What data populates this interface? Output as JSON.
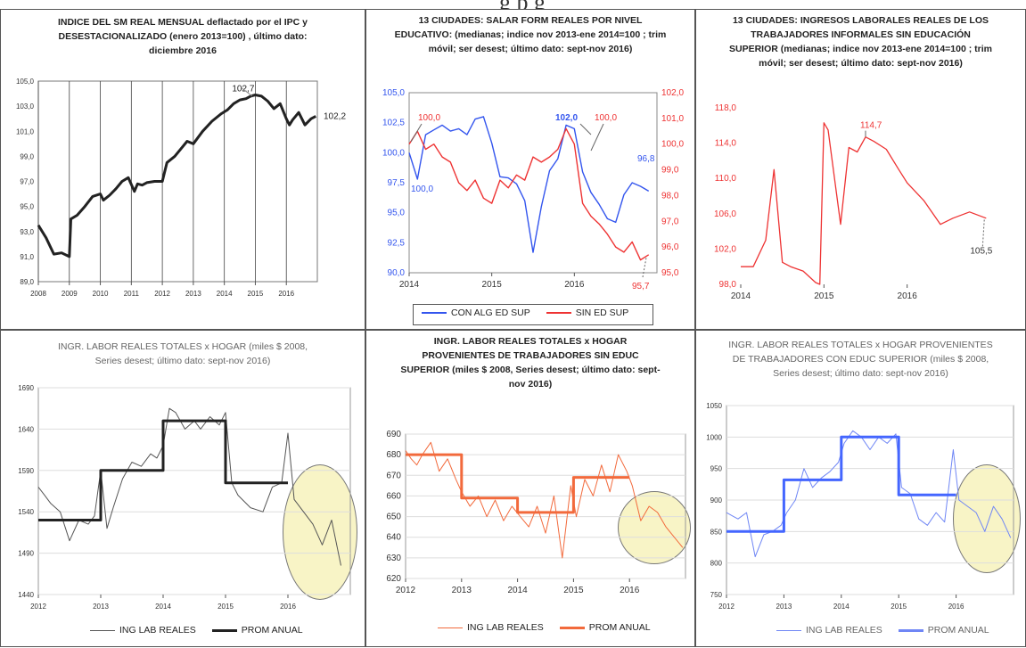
{
  "header_fragment": "g         p g",
  "panels": {
    "p1": {
      "title": "INDICE DEL SM REAL MENSUAL deflactado por el IPC y DESESTACIONALIZADO (enero 2013=100) , último dato: diciembre 2016"
    },
    "p2": {
      "title": "13 CIUDADES:  SALAR FORM REALES POR NIVEL EDUCATIVO:  (medianas; indice nov 2013-ene 2014=100 ; trim móvil; ser desest; último dato: sept-nov 2016)",
      "legend": [
        "CON ALG  ED SUP",
        "SIN ED SUP"
      ]
    },
    "p3": {
      "title": "13 CIUDADES:  INGRESOS  LABORALES REALES DE LOS TRABAJADORES  INFORMALES SIN EDUCACIÓN SUPERIOR  (medianas; indice nov 2013-ene 2014=100 ; trim móvil; ser desest; último dato:  sept-nov 2016)"
    },
    "p4": {
      "title": "INGR. LABOR REALES TOTALES x  HOGAR (miles $ 2008, Series desest; último dato: sept-nov 2016)",
      "legend": [
        "ING LAB REALES",
        "PROM ANUAL"
      ]
    },
    "p5": {
      "title": "INGR. LABOR REALES TOTALES x  HOGAR PROVENIENTES  DE TRABAJADORES  SIN EDUC SUPERIOR  (miles $ 2008, Series desest; último dato: sept-nov 2016)",
      "legend": [
        "ING LAB REALES",
        "PROM ANUAL"
      ]
    },
    "p6": {
      "title": "INGR. LABOR REALES TOTALES x  HOGAR PROVENIENTES DE TRABAJADORES CON EDUC SUPERIOR (miles $ 2008, Series desest; último dato: sept-nov 2016)",
      "legend": [
        "ING LAB REALES",
        "PROM ANUAL"
      ]
    }
  },
  "colors": {
    "black": "#222222",
    "blue": "#3355ee",
    "red": "#ee3333",
    "orange": "#f26a3c",
    "light_blue": "#6f86f5",
    "gray": "#555555",
    "ellipse": "#f8f4c6"
  },
  "chart_data": [
    {
      "type": "line",
      "ylim": [
        89.0,
        105.0
      ],
      "yticks": [
        "89,0",
        "91,0",
        "93,0",
        "95,0",
        "97,0",
        "99,0",
        "101,0",
        "103,0",
        "105,0"
      ],
      "xlim": [
        2008,
        2017
      ],
      "xticks": [
        "2008",
        "2009",
        "2010",
        "2011",
        "2012",
        "2013",
        "2014",
        "2015",
        "2016"
      ],
      "grid": "vertical",
      "series": [
        {
          "x": [
            2008.0,
            2008.25,
            2008.5,
            2008.75,
            2009.0,
            2009.05,
            2009.25,
            2009.5,
            2009.75,
            2010.0,
            2010.1,
            2010.3,
            2010.5,
            2010.7,
            2010.9,
            2011.1,
            2011.2,
            2011.35,
            2011.5,
            2011.75,
            2012.0,
            2012.15,
            2012.4,
            2012.6,
            2012.8,
            2013.0,
            2013.3,
            2013.6,
            2013.9,
            2014.1,
            2014.3,
            2014.5,
            2014.7,
            2014.85,
            2015.0,
            2015.2,
            2015.4,
            2015.6,
            2015.8,
            2016.0,
            2016.1,
            2016.2,
            2016.4,
            2016.6,
            2016.8,
            2016.95
          ],
          "values": [
            93.5,
            92.5,
            91.2,
            91.3,
            91.0,
            94.0,
            94.3,
            95.0,
            95.8,
            96.0,
            95.5,
            95.9,
            96.4,
            97.0,
            97.3,
            96.2,
            96.8,
            96.7,
            96.9,
            97.0,
            97.0,
            98.5,
            99.0,
            99.6,
            100.2,
            100.0,
            101.0,
            101.8,
            102.4,
            102.7,
            103.2,
            103.5,
            103.6,
            103.8,
            103.9,
            103.8,
            103.4,
            102.8,
            103.2,
            102.0,
            101.5,
            101.9,
            102.5,
            101.5,
            102.0,
            102.2
          ]
        }
      ],
      "annotations": [
        "102,7",
        "102,2"
      ]
    },
    {
      "type": "line",
      "ylim_left": [
        90.0,
        105.0
      ],
      "yticks_left": [
        "90,0",
        "92,5",
        "95,0",
        "97,5",
        "100,0",
        "102,5",
        "105,0"
      ],
      "ylim_right": [
        95.0,
        102.0
      ],
      "yticks_right": [
        "95,0",
        "96,0",
        "97,0",
        "98,0",
        "99,0",
        "100,0",
        "101,0",
        "102,0"
      ],
      "xlim": [
        2014,
        2017
      ],
      "xticks": [
        "2014",
        "2015",
        "2016"
      ],
      "series": [
        {
          "name": "CON ALG  ED SUP",
          "axis": "left",
          "x": [
            2014.0,
            2014.1,
            2014.2,
            2014.3,
            2014.4,
            2014.5,
            2014.6,
            2014.7,
            2014.8,
            2014.9,
            2015.0,
            2015.1,
            2015.2,
            2015.3,
            2015.4,
            2015.5,
            2015.6,
            2015.7,
            2015.8,
            2015.9,
            2016.0,
            2016.1,
            2016.2,
            2016.3,
            2016.4,
            2016.5,
            2016.6,
            2016.7,
            2016.8,
            2016.9
          ],
          "values": [
            100.0,
            97.8,
            101.5,
            101.9,
            102.3,
            101.8,
            102.0,
            101.5,
            102.8,
            103.0,
            100.8,
            98.0,
            97.9,
            97.4,
            96.0,
            91.7,
            95.5,
            98.5,
            99.5,
            102.3,
            102.0,
            98.4,
            96.7,
            95.7,
            94.5,
            94.2,
            96.5,
            97.5,
            97.2,
            96.8
          ]
        },
        {
          "name": "SIN ED SUP",
          "axis": "right",
          "x": [
            2014.0,
            2014.1,
            2014.2,
            2014.3,
            2014.4,
            2014.5,
            2014.6,
            2014.7,
            2014.8,
            2014.9,
            2015.0,
            2015.1,
            2015.2,
            2015.3,
            2015.4,
            2015.5,
            2015.6,
            2015.7,
            2015.8,
            2015.9,
            2016.0,
            2016.1,
            2016.2,
            2016.3,
            2016.4,
            2016.5,
            2016.6,
            2016.7,
            2016.8,
            2016.9
          ],
          "values": [
            100.0,
            100.5,
            99.8,
            100.0,
            99.5,
            99.3,
            98.5,
            98.2,
            98.6,
            97.9,
            97.7,
            98.6,
            98.3,
            98.8,
            98.6,
            99.5,
            99.3,
            99.5,
            99.8,
            100.6,
            100.0,
            97.7,
            97.2,
            96.9,
            96.5,
            96.0,
            95.8,
            96.2,
            95.5,
            95.7
          ]
        }
      ],
      "annotations": [
        "100,0",
        "100,0",
        "102,0",
        "100,0",
        "96,8",
        "95,7"
      ]
    },
    {
      "type": "line",
      "ylim": [
        98.0,
        118.0
      ],
      "yticks": [
        "98,0",
        "102,0",
        "106,0",
        "110,0",
        "114,0",
        "118,0"
      ],
      "xlim": [
        2014,
        2017
      ],
      "xticks": [
        "2014",
        "2015",
        "2016"
      ],
      "series": [
        {
          "x": [
            2014.0,
            2014.15,
            2014.3,
            2014.4,
            2014.5,
            2014.6,
            2014.75,
            2014.9,
            2014.95,
            2015.0,
            2015.05,
            2015.2,
            2015.3,
            2015.4,
            2015.5,
            2015.6,
            2015.75,
            2015.9,
            2016.0,
            2016.2,
            2016.4,
            2016.55,
            2016.75,
            2016.95
          ],
          "values": [
            100.0,
            100.0,
            103.0,
            111.0,
            100.5,
            100.0,
            99.5,
            98.2,
            98.0,
            116.3,
            115.5,
            104.8,
            113.5,
            113.0,
            114.7,
            114.2,
            113.3,
            111.0,
            109.5,
            107.5,
            104.8,
            105.5,
            106.2,
            105.5
          ]
        }
      ],
      "annotations": [
        "114,7",
        "105,5"
      ]
    },
    {
      "type": "line",
      "ylim": [
        1440,
        1690
      ],
      "yticks": [
        "1440",
        "1490",
        "1540",
        "1590",
        "1640",
        "1690"
      ],
      "xlim": [
        2012,
        2017
      ],
      "xticks": [
        "2012",
        "2013",
        "2014",
        "2015",
        "2016"
      ],
      "series": [
        {
          "name": "ING LAB REALES",
          "x": [
            2012.0,
            2012.1,
            2012.2,
            2012.35,
            2012.5,
            2012.65,
            2012.8,
            2012.9,
            2013.0,
            2013.1,
            2013.2,
            2013.35,
            2013.5,
            2013.65,
            2013.8,
            2013.9,
            2014.0,
            2014.1,
            2014.2,
            2014.35,
            2014.5,
            2014.6,
            2014.75,
            2014.9,
            2015.0,
            2015.1,
            2015.2,
            2015.4,
            2015.6,
            2015.75,
            2015.9,
            2016.0,
            2016.1,
            2016.25,
            2016.4,
            2016.55,
            2016.7,
            2016.85
          ],
          "values": [
            1570,
            1560,
            1550,
            1540,
            1505,
            1530,
            1525,
            1535,
            1590,
            1520,
            1545,
            1580,
            1600,
            1595,
            1610,
            1605,
            1620,
            1665,
            1660,
            1640,
            1650,
            1640,
            1655,
            1645,
            1660,
            1575,
            1560,
            1545,
            1540,
            1570,
            1575,
            1635,
            1555,
            1540,
            1525,
            1500,
            1530,
            1475
          ]
        },
        {
          "name": "PROM ANUAL",
          "x": [
            2012.0,
            2013.0,
            2013.0,
            2014.0,
            2014.0,
            2015.0,
            2015.0,
            2016.0
          ],
          "values": [
            1530,
            1530,
            1590,
            1590,
            1650,
            1650,
            1575,
            1575
          ]
        }
      ]
    },
    {
      "type": "line",
      "ylim": [
        620,
        690
      ],
      "yticks": [
        "620",
        "630",
        "640",
        "650",
        "660",
        "670",
        "680",
        "690"
      ],
      "xlim": [
        2012,
        2017
      ],
      "xticks": [
        "2012",
        "2013",
        "2014",
        "2015",
        "2016"
      ],
      "series": [
        {
          "name": "ING LAB REALES",
          "x": [
            2012.0,
            2012.1,
            2012.2,
            2012.3,
            2012.45,
            2012.6,
            2012.75,
            2012.9,
            2013.0,
            2013.15,
            2013.3,
            2013.45,
            2013.6,
            2013.75,
            2013.9,
            2014.05,
            2014.2,
            2014.35,
            2014.5,
            2014.65,
            2014.8,
            2014.95,
            2015.05,
            2015.2,
            2015.35,
            2015.5,
            2015.65,
            2015.8,
            2015.95,
            2016.05,
            2016.2,
            2016.35,
            2016.5,
            2016.65,
            2016.8,
            2016.95
          ],
          "values": [
            682,
            678,
            675,
            680,
            686,
            672,
            678,
            668,
            662,
            655,
            660,
            650,
            658,
            648,
            655,
            650,
            645,
            655,
            642,
            660,
            630,
            665,
            650,
            668,
            660,
            675,
            662,
            680,
            672,
            665,
            648,
            655,
            652,
            645,
            640,
            635
          ]
        },
        {
          "name": "PROM ANUAL",
          "x": [
            2012.0,
            2013.0,
            2013.0,
            2014.0,
            2014.0,
            2015.0,
            2015.0,
            2016.0
          ],
          "values": [
            680,
            680,
            659,
            659,
            652,
            652,
            669,
            669
          ]
        }
      ]
    },
    {
      "type": "line",
      "ylim": [
        750,
        1050
      ],
      "yticks": [
        "750",
        "800",
        "850",
        "900",
        "950",
        "1000",
        "1050"
      ],
      "xlim": [
        2012,
        2017
      ],
      "xticks": [
        "2012",
        "2013",
        "2014",
        "2015",
        "2016"
      ],
      "series": [
        {
          "name": "ING LAB REALES",
          "x": [
            2012.0,
            2012.1,
            2012.2,
            2012.35,
            2012.5,
            2012.65,
            2012.8,
            2012.95,
            2013.05,
            2013.2,
            2013.35,
            2013.5,
            2013.65,
            2013.8,
            2013.95,
            2014.05,
            2014.2,
            2014.35,
            2014.5,
            2014.65,
            2014.8,
            2014.95,
            2015.05,
            2015.2,
            2015.35,
            2015.5,
            2015.65,
            2015.8,
            2015.95,
            2016.05,
            2016.2,
            2016.35,
            2016.5,
            2016.65,
            2016.8,
            2016.95
          ],
          "values": [
            880,
            875,
            870,
            880,
            810,
            845,
            850,
            860,
            880,
            900,
            950,
            920,
            935,
            945,
            960,
            990,
            1010,
            1000,
            980,
            1000,
            990,
            1005,
            920,
            910,
            870,
            860,
            880,
            865,
            980,
            900,
            890,
            880,
            850,
            890,
            870,
            840
          ]
        },
        {
          "name": "PROM ANUAL",
          "x": [
            2012.0,
            2013.0,
            2013.0,
            2014.0,
            2014.0,
            2015.0,
            2015.0,
            2016.0
          ],
          "values": [
            850,
            850,
            932,
            932,
            1000,
            1000,
            908,
            908
          ]
        }
      ]
    }
  ]
}
